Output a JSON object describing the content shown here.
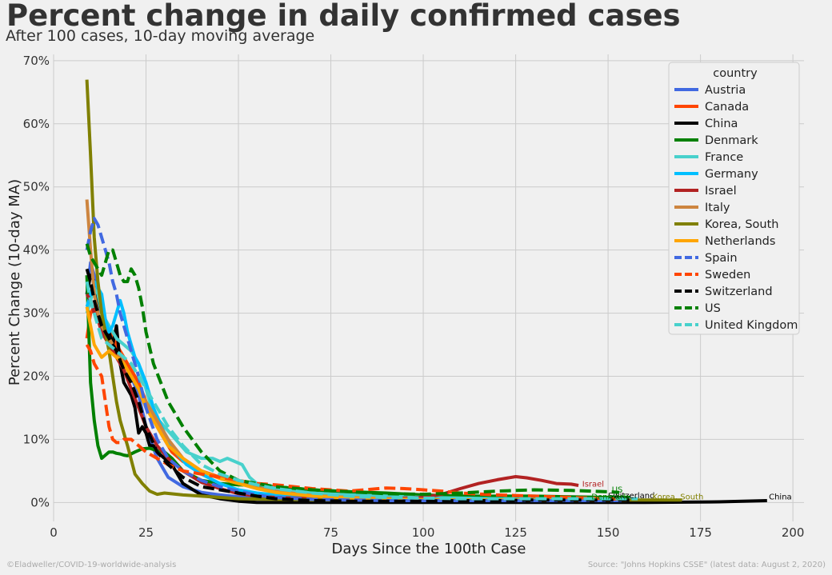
{
  "chart_data": {
    "type": "line",
    "title": "Percent change in daily confirmed cases",
    "subtitle": "After 100 cases, 10-day moving average",
    "xlabel": "Days Since the 100th Case",
    "ylabel": "Percent Change (10-day MA)",
    "xlim": [
      0,
      203
    ],
    "ylim": [
      -3,
      71
    ],
    "xticks": [
      0,
      25,
      50,
      75,
      100,
      125,
      150,
      175,
      200
    ],
    "yticks": [
      0,
      10,
      20,
      30,
      40,
      50,
      60,
      70
    ],
    "ytick_labels": [
      "0%",
      "10%",
      "20%",
      "30%",
      "40%",
      "50%",
      "60%",
      "70%"
    ],
    "grid": true,
    "legend": {
      "title": "country",
      "placement": "top-right"
    },
    "series": [
      {
        "name": "Austria",
        "color": "#4169e1",
        "dash": "solid",
        "x": [
          9,
          10,
          11,
          12,
          13,
          15,
          17,
          19,
          21,
          23,
          25,
          28,
          31,
          35,
          40,
          45,
          50,
          55,
          60,
          70,
          80,
          90,
          100,
          110,
          120,
          130,
          140,
          150,
          155
        ],
        "y": [
          33,
          38,
          36,
          32,
          30,
          27,
          24,
          22,
          20,
          17,
          12,
          7,
          4,
          2.5,
          1.6,
          1.2,
          0.9,
          0.7,
          0.6,
          0.5,
          0.4,
          0.4,
          0.4,
          0.4,
          0.4,
          0.4,
          0.4,
          0.4,
          0.4
        ]
      },
      {
        "name": "Canada",
        "color": "#ff4500",
        "dash": "solid",
        "x": [
          9,
          10,
          11,
          12,
          13,
          15,
          17,
          19,
          21,
          23,
          25,
          28,
          30,
          32,
          35,
          40,
          45,
          50,
          55,
          60,
          70,
          80,
          90,
          100,
          110,
          120,
          130,
          140,
          150,
          157
        ],
        "y": [
          26,
          30,
          31,
          29,
          28,
          27,
          25,
          23,
          21,
          19,
          16,
          12,
          10,
          8,
          6.5,
          5,
          4,
          3.2,
          2.6,
          2.2,
          1.6,
          1.2,
          1,
          0.9,
          0.7,
          0.6,
          0.6,
          0.5,
          0.5,
          0.5
        ]
      },
      {
        "name": "China",
        "color": "#000000",
        "dash": "solid",
        "x": [
          9,
          10,
          11,
          12,
          13,
          14,
          15,
          16,
          17,
          18,
          19,
          20,
          21,
          22,
          23,
          24,
          25,
          26,
          27,
          28,
          30,
          32,
          35,
          40,
          45,
          50,
          55,
          60,
          80,
          100,
          120,
          140,
          160,
          180,
          193
        ],
        "y": [
          33,
          36,
          35,
          30,
          27,
          29,
          27,
          25,
          28,
          22,
          19,
          18,
          17,
          15,
          11,
          12,
          11,
          9,
          9,
          8,
          7,
          6,
          3,
          1.2,
          0.6,
          0.2,
          0,
          0,
          0,
          0,
          0,
          0,
          0,
          0.1,
          0.3
        ]
      },
      {
        "name": "Denmark",
        "color": "#008000",
        "dash": "solid",
        "x": [
          9,
          10,
          11,
          12,
          13,
          14,
          15,
          16,
          17,
          18,
          19,
          20,
          22,
          24,
          26,
          28,
          30,
          32,
          35,
          40,
          45,
          50,
          55,
          60,
          70,
          80,
          90,
          100,
          110,
          120,
          130,
          140,
          150,
          156
        ],
        "y": [
          36,
          19,
          13,
          9,
          7,
          7.5,
          8,
          8,
          7.8,
          7.7,
          7.5,
          7.4,
          8,
          8.5,
          8.6,
          8.2,
          8,
          7,
          5,
          3.5,
          3,
          2.8,
          2.7,
          2.5,
          2,
          1.7,
          1.5,
          1.2,
          1,
          1,
          1,
          0.9,
          0.8,
          0.8
        ]
      },
      {
        "name": "France",
        "color": "#48d1cc",
        "dash": "solid",
        "x": [
          9,
          10,
          11,
          12,
          13,
          15,
          17,
          19,
          21,
          23,
          25,
          27,
          30,
          33,
          36,
          40,
          43,
          45,
          47,
          49,
          51,
          53,
          55,
          58,
          62,
          70,
          80,
          90,
          100,
          110,
          120,
          130,
          140,
          150,
          158
        ],
        "y": [
          30,
          32,
          34,
          33,
          30,
          28,
          26,
          25,
          24,
          22,
          18,
          14,
          12,
          10,
          8,
          7,
          7,
          6.5,
          7,
          6.5,
          6,
          4,
          3,
          2.5,
          2,
          1.5,
          1.2,
          1,
          0.8,
          0.7,
          0.6,
          0.5,
          0.5,
          0.5,
          0.5
        ]
      },
      {
        "name": "Germany",
        "color": "#00bfff",
        "dash": "solid",
        "x": [
          9,
          10,
          11,
          12,
          13,
          14,
          15,
          16,
          17,
          18,
          19,
          20,
          21,
          22,
          23,
          25,
          27,
          30,
          33,
          36,
          40,
          45,
          50,
          55,
          60,
          70,
          80,
          90,
          100,
          110,
          120,
          130,
          140,
          150,
          155
        ],
        "y": [
          31,
          33,
          35,
          34,
          33,
          29,
          27,
          28,
          30,
          32,
          30,
          27,
          25,
          23,
          22,
          19,
          15,
          11,
          8,
          6,
          4.5,
          3,
          2,
          1.5,
          1.2,
          0.8,
          0.6,
          0.5,
          0.4,
          0.4,
          0.4,
          0.4,
          0.4,
          0.4,
          0.4
        ]
      },
      {
        "name": "Israel",
        "color": "#b22222",
        "dash": "solid",
        "x": [
          9,
          10,
          11,
          12,
          13,
          15,
          17,
          19,
          21,
          23,
          25,
          28,
          31,
          35,
          40,
          45,
          50,
          55,
          60,
          70,
          80,
          90,
          100,
          105,
          110,
          115,
          120,
          125,
          128,
          132,
          136,
          140,
          142
        ],
        "y": [
          33,
          32,
          30,
          29,
          27,
          25,
          23,
          21,
          18,
          15,
          12,
          9,
          7,
          5,
          3.2,
          2.2,
          1.4,
          1,
          0.8,
          0.6,
          0.6,
          0.6,
          0.8,
          1.3,
          2.2,
          3,
          3.6,
          4.1,
          3.9,
          3.5,
          3,
          2.9,
          2.7
        ]
      },
      {
        "name": "Italy",
        "color": "#cd853f",
        "dash": "solid",
        "x": [
          9,
          10,
          11,
          12,
          13,
          15,
          17,
          19,
          21,
          23,
          25,
          28,
          31,
          35,
          40,
          45,
          50,
          55,
          60,
          70,
          80,
          90,
          100,
          110,
          120,
          130,
          140,
          150,
          155
        ],
        "y": [
          48,
          40,
          33,
          30,
          28,
          26,
          24,
          22,
          20,
          18,
          16,
          13,
          10,
          7,
          5,
          3.8,
          3,
          2.4,
          1.8,
          1.1,
          0.8,
          0.6,
          0.5,
          0.4,
          0.4,
          0.4,
          0.4,
          0.4,
          0.4
        ]
      },
      {
        "name": "Korea, South",
        "color": "#808000",
        "dash": "solid",
        "x": [
          9,
          10,
          11,
          12,
          13,
          14,
          15,
          16,
          17,
          18,
          20,
          22,
          24,
          26,
          28,
          30,
          35,
          40,
          45,
          50,
          60,
          70,
          80,
          90,
          100,
          120,
          140,
          160,
          170
        ],
        "y": [
          67,
          55,
          42,
          35,
          30,
          27,
          24,
          20,
          16,
          13,
          9,
          4.5,
          3,
          1.8,
          1.3,
          1.5,
          1.2,
          1,
          0.8,
          0.6,
          0.5,
          0.4,
          0.4,
          0.4,
          0.4,
          0.4,
          0.4,
          0.4,
          0.4
        ]
      },
      {
        "name": "Netherlands",
        "color": "#ffa500",
        "dash": "solid",
        "x": [
          9,
          10,
          11,
          12,
          13,
          15,
          17,
          19,
          21,
          23,
          25,
          28,
          31,
          35,
          40,
          45,
          50,
          55,
          60,
          70,
          80,
          90,
          100,
          110,
          120,
          130,
          140,
          150,
          155
        ],
        "y": [
          31,
          28,
          25,
          24,
          23,
          24,
          23,
          22,
          20,
          18,
          15,
          12,
          9,
          7,
          5,
          3.8,
          3,
          2.2,
          1.6,
          1,
          0.7,
          0.5,
          0.4,
          0.4,
          0.4,
          0.4,
          0.4,
          0.4,
          0.4
        ]
      },
      {
        "name": "Spain",
        "color": "#4169e1",
        "dash": "dashed",
        "x": [
          9,
          10,
          11,
          12,
          13,
          14,
          15,
          16,
          17,
          18,
          19,
          20,
          21,
          23,
          25,
          28,
          31,
          35,
          40,
          45,
          50,
          55,
          60,
          70,
          80,
          90,
          100,
          110,
          120,
          130,
          140,
          150,
          155
        ],
        "y": [
          40,
          43,
          45,
          44,
          42,
          40,
          38,
          35,
          33,
          30,
          28,
          26,
          24,
          20,
          15,
          10,
          7,
          5,
          3.5,
          2.5,
          1.8,
          1.2,
          0.8,
          0.5,
          0.4,
          0.3,
          0.3,
          0.3,
          0.3,
          0.3,
          0.3,
          0.3,
          0.3
        ]
      },
      {
        "name": "Sweden",
        "color": "#ff4500",
        "dash": "dashed",
        "x": [
          9,
          10,
          11,
          12,
          13,
          14,
          15,
          16,
          17,
          18,
          19,
          21,
          23,
          25,
          28,
          31,
          35,
          40,
          45,
          50,
          55,
          60,
          70,
          80,
          90,
          95,
          100,
          105,
          110,
          120,
          130,
          140,
          150,
          155
        ],
        "y": [
          25,
          24,
          22,
          21,
          20,
          16,
          12,
          10,
          9.5,
          9.5,
          10,
          10,
          9,
          8,
          7,
          6,
          5,
          4.5,
          4,
          3.5,
          3,
          2.8,
          2.2,
          1.8,
          2.3,
          2.2,
          2,
          1.8,
          1.5,
          1.2,
          1,
          0.8,
          0.6,
          0.5
        ]
      },
      {
        "name": "Switzerland",
        "color": "#000000",
        "dash": "dashed",
        "x": [
          9,
          10,
          11,
          12,
          13,
          15,
          17,
          19,
          21,
          23,
          25,
          28,
          31,
          35,
          40,
          45,
          50,
          55,
          60,
          70,
          80,
          90,
          100,
          110,
          120,
          130,
          140,
          150,
          157
        ],
        "y": [
          37,
          35,
          32,
          30,
          28,
          26,
          24,
          21,
          19,
          16,
          12,
          8,
          6,
          4,
          2.5,
          2,
          1.5,
          1,
          0.6,
          0.3,
          0.2,
          0.2,
          0.2,
          0.3,
          0.3,
          0.4,
          0.4,
          0.4,
          0.4
        ]
      },
      {
        "name": "US",
        "color": "#008000",
        "dash": "dashed",
        "x": [
          9,
          10,
          11,
          12,
          13,
          14,
          15,
          16,
          17,
          18,
          19,
          20,
          21,
          22,
          23,
          24,
          25,
          27,
          29,
          31,
          35,
          40,
          45,
          50,
          55,
          60,
          70,
          80,
          90,
          100,
          110,
          120,
          130,
          140,
          150,
          153
        ],
        "y": [
          41,
          39,
          38,
          37,
          36,
          38,
          40,
          40,
          38,
          36,
          35,
          35,
          37,
          36,
          34,
          31,
          27,
          22,
          19,
          16,
          12,
          8,
          5,
          3.5,
          3,
          2.5,
          2,
          1.7,
          1.4,
          1.3,
          1.5,
          1.8,
          2,
          1.9,
          1.7,
          1.6
        ]
      },
      {
        "name": "United Kingdom",
        "color": "#48d1cc",
        "dash": "dashed",
        "x": [
          9,
          10,
          11,
          12,
          13,
          15,
          17,
          19,
          21,
          23,
          25,
          28,
          31,
          35,
          40,
          45,
          50,
          55,
          60,
          70,
          80,
          90,
          100,
          110,
          120,
          130,
          140,
          150,
          158
        ],
        "y": [
          35,
          32,
          30,
          28,
          26,
          25,
          24,
          23,
          22,
          20,
          18,
          15,
          12,
          9,
          6,
          4.5,
          3.5,
          2.8,
          2.2,
          1.5,
          1,
          0.8,
          0.7,
          0.6,
          0.6,
          0.6,
          0.6,
          0.6,
          0.6
        ]
      }
    ],
    "end_labels": [
      {
        "text": "Israel",
        "x": 143,
        "y": 2.5,
        "color": "#b22222"
      },
      {
        "text": "US",
        "x": 151,
        "y": 1.6,
        "color": "#008000"
      },
      {
        "text": "Switzerland",
        "x": 150,
        "y": 0.7,
        "color": "#000000"
      },
      {
        "text": "Denmark",
        "x": 145.5,
        "y": 0.5,
        "color": "#008000"
      },
      {
        "text": "Korea, South",
        "x": 162,
        "y": 0.5,
        "color": "#808000"
      },
      {
        "text": "China",
        "x": 193.5,
        "y": 0.5,
        "color": "#000000"
      }
    ]
  },
  "footer": {
    "left": "©Eladweller/COVID-19-worldwide-analysis",
    "right": "Source: \"Johns Hopkins CSSE\" (latest data: August 2, 2020)"
  }
}
